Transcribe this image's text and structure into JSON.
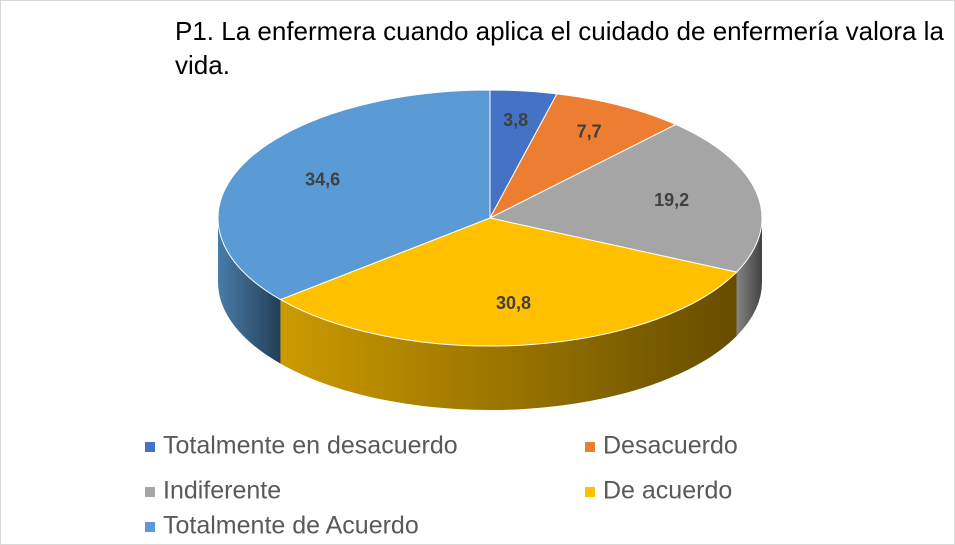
{
  "chart_data": {
    "type": "pie3d",
    "title": "P1. La enfermera cuando aplica el cuidado de enfermería valora la vida.",
    "categories": [
      "Totalmente en desacuerdo",
      "Desacuerdo",
      "Indiferente",
      "De acuerdo",
      "Totalmente de Acuerdo"
    ],
    "values": [
      3.8,
      7.7,
      19.2,
      30.8,
      34.6
    ],
    "value_labels": [
      "3,8",
      "7,7",
      "19,2",
      "30,8",
      "34,6"
    ],
    "colors": [
      "#4472c4",
      "#ed7d31",
      "#a5a5a5",
      "#ffc000",
      "#5b9bd5"
    ],
    "legend": "bottom"
  }
}
